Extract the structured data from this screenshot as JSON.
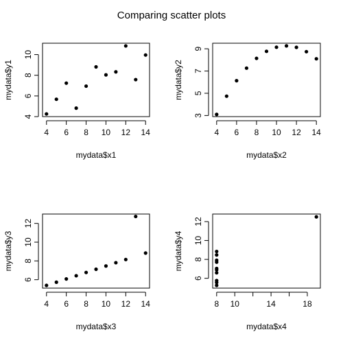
{
  "figure": {
    "title": "Comparing scatter plots"
  },
  "chart_data": [
    {
      "type": "scatter",
      "xlabel": "mydata$x1",
      "ylabel": "mydata$y1",
      "x": [
        10,
        8,
        13,
        9,
        11,
        14,
        6,
        4,
        12,
        7,
        5
      ],
      "y": [
        8.04,
        6.95,
        7.58,
        8.81,
        8.33,
        9.96,
        7.24,
        4.26,
        10.84,
        4.82,
        5.68
      ],
      "xlim": [
        3.6,
        14.4
      ],
      "ylim": [
        4.0,
        11.1
      ],
      "xticks": [
        4,
        6,
        8,
        10,
        12,
        14
      ],
      "yticks": [
        4,
        6,
        8,
        10
      ]
    },
    {
      "type": "scatter",
      "xlabel": "mydata$x2",
      "ylabel": "mydata$y2",
      "x": [
        10,
        8,
        13,
        9,
        11,
        14,
        6,
        4,
        12,
        7,
        5
      ],
      "y": [
        9.14,
        8.14,
        8.74,
        8.77,
        9.26,
        8.1,
        6.13,
        3.1,
        9.13,
        7.26,
        4.74
      ],
      "xlim": [
        3.6,
        14.4
      ],
      "ylim": [
        2.9,
        9.5
      ],
      "xticks": [
        4,
        6,
        8,
        10,
        12,
        14
      ],
      "yticks": [
        3,
        5,
        7,
        9
      ]
    },
    {
      "type": "scatter",
      "xlabel": "mydata$x3",
      "ylabel": "mydata$y3",
      "x": [
        10,
        8,
        13,
        9,
        11,
        14,
        6,
        4,
        12,
        7,
        5
      ],
      "y": [
        7.46,
        6.77,
        12.74,
        7.11,
        7.81,
        8.84,
        6.08,
        5.39,
        8.15,
        6.42,
        5.73
      ],
      "xlim": [
        3.6,
        14.4
      ],
      "ylim": [
        5.1,
        13.0
      ],
      "xticks": [
        4,
        6,
        8,
        10,
        12,
        14
      ],
      "yticks": [
        6,
        8,
        10,
        12
      ]
    },
    {
      "type": "scatter",
      "xlabel": "mydata$x4",
      "ylabel": "mydata$y4",
      "x": [
        8,
        8,
        8,
        8,
        8,
        8,
        8,
        19,
        8,
        8,
        8
      ],
      "y": [
        6.58,
        5.76,
        7.71,
        8.84,
        8.47,
        7.04,
        5.25,
        12.5,
        5.56,
        7.91,
        6.89
      ],
      "xlim": [
        7.56,
        19.44
      ],
      "ylim": [
        4.96,
        12.8
      ],
      "xticks": [
        8,
        10,
        12,
        14,
        16,
        18
      ],
      "xticklabels": [
        "8",
        "10",
        "",
        "14",
        "",
        "18"
      ],
      "yticks": [
        6,
        8,
        10,
        12
      ]
    }
  ]
}
